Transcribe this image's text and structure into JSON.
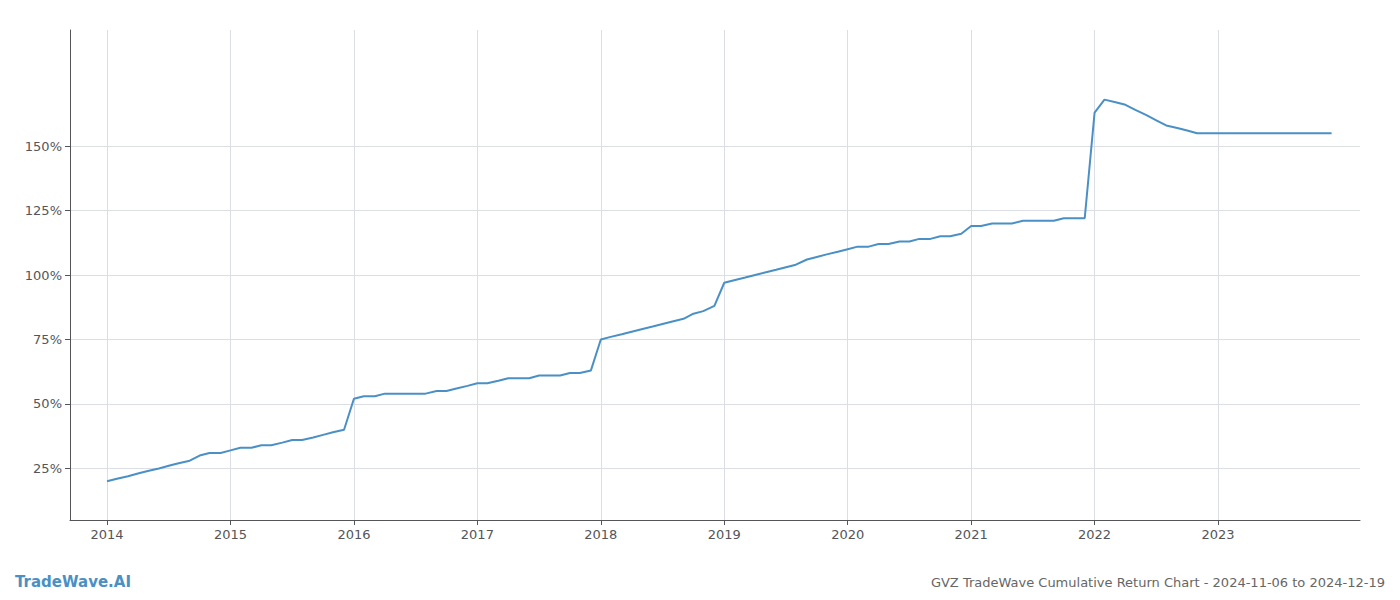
{
  "chart_data": {
    "type": "line",
    "title": "GVZ TradeWave Cumulative Return Chart - 2024-11-06 to 2024-12-19",
    "annotations": [
      "TradeWave.AI"
    ],
    "color": "#4a90c4",
    "x": [
      2014.0,
      2014.08,
      2014.17,
      2014.25,
      2014.33,
      2014.42,
      2014.5,
      2014.58,
      2014.67,
      2014.75,
      2014.83,
      2014.92,
      2015.0,
      2015.08,
      2015.17,
      2015.25,
      2015.33,
      2015.42,
      2015.5,
      2015.58,
      2015.67,
      2015.75,
      2015.83,
      2015.92,
      2016.0,
      2016.08,
      2016.17,
      2016.25,
      2016.33,
      2016.42,
      2016.5,
      2016.58,
      2016.67,
      2016.75,
      2016.83,
      2016.92,
      2017.0,
      2017.08,
      2017.17,
      2017.25,
      2017.33,
      2017.42,
      2017.5,
      2017.58,
      2017.67,
      2017.75,
      2017.83,
      2017.92,
      2018.0,
      2018.08,
      2018.17,
      2018.25,
      2018.33,
      2018.42,
      2018.5,
      2018.58,
      2018.67,
      2018.75,
      2018.83,
      2018.92,
      2019.0,
      2019.08,
      2019.17,
      2019.25,
      2019.33,
      2019.42,
      2019.5,
      2019.58,
      2019.67,
      2019.75,
      2019.83,
      2019.92,
      2020.0,
      2020.08,
      2020.17,
      2020.25,
      2020.33,
      2020.42,
      2020.5,
      2020.58,
      2020.67,
      2020.75,
      2020.83,
      2020.92,
      2021.0,
      2021.08,
      2021.17,
      2021.25,
      2021.33,
      2021.42,
      2021.5,
      2021.58,
      2021.67,
      2021.75,
      2021.83,
      2021.92,
      2022.0,
      2022.08,
      2022.17,
      2022.25,
      2022.33,
      2022.42,
      2022.5,
      2022.58,
      2022.67,
      2022.75,
      2022.83,
      2022.92,
      2023.0,
      2023.08,
      2023.17,
      2023.25,
      2023.33,
      2023.42,
      2023.5,
      2023.58,
      2023.67,
      2023.75,
      2023.83,
      2023.92
    ],
    "values": [
      20,
      21,
      22,
      23,
      24,
      25,
      26,
      27,
      28,
      30,
      31,
      31,
      32,
      33,
      33,
      34,
      34,
      35,
      36,
      36,
      37,
      38,
      39,
      40,
      52,
      53,
      53,
      54,
      54,
      54,
      54,
      54,
      55,
      55,
      56,
      57,
      58,
      58,
      59,
      60,
      60,
      60,
      61,
      61,
      61,
      62,
      62,
      63,
      75,
      76,
      77,
      78,
      79,
      80,
      81,
      82,
      83,
      85,
      86,
      88,
      97,
      98,
      99,
      100,
      101,
      102,
      103,
      104,
      106,
      107,
      108,
      109,
      110,
      111,
      111,
      112,
      112,
      113,
      113,
      114,
      114,
      115,
      115,
      116,
      119,
      119,
      120,
      120,
      120,
      121,
      121,
      121,
      121,
      122,
      122,
      122,
      163,
      168,
      167,
      166,
      164,
      162,
      160,
      158,
      157,
      156,
      155,
      155,
      155,
      155,
      155,
      155,
      155,
      155,
      155,
      155,
      155,
      155,
      155,
      155
    ],
    "xlim": [
      2013.7,
      2024.15
    ],
    "xticks": [
      2014,
      2015,
      2016,
      2017,
      2018,
      2019,
      2020,
      2021,
      2022,
      2023
    ],
    "ylim": [
      5,
      195
    ],
    "yticks": [
      {
        "value": 25,
        "label": "25%"
      },
      {
        "value": 50,
        "label": "50%"
      },
      {
        "value": 75,
        "label": "75%"
      },
      {
        "value": 100,
        "label": "100%"
      },
      {
        "value": 125,
        "label": "125%"
      },
      {
        "value": 150,
        "label": "150%"
      }
    ],
    "grid": true
  }
}
